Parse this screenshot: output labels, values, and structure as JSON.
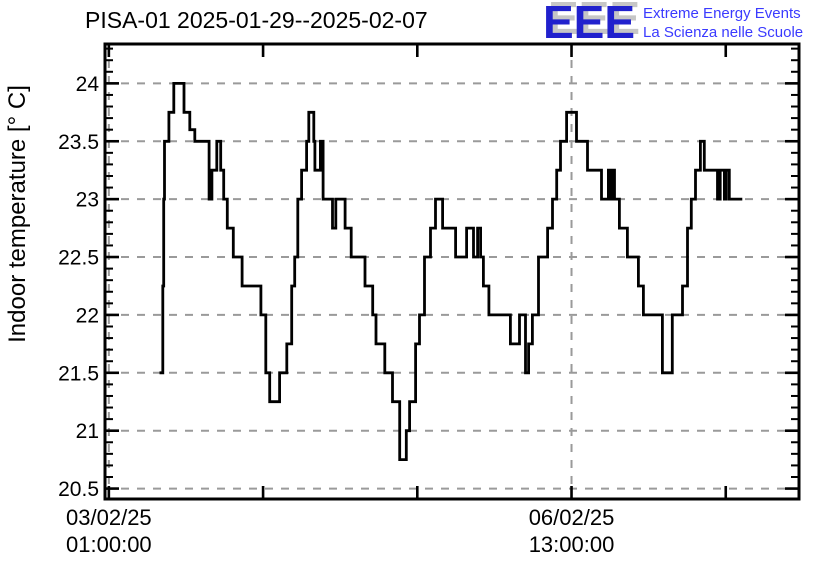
{
  "title": "PISA-01 2025-01-29--2025-02-07",
  "logo": {
    "acronym": "EEE",
    "line1": "Extreme Energy Events",
    "line2": "La Scienza nelle Scuole",
    "acronym_color": "#2121cd",
    "shadow_color": "#c6c6c6",
    "text_color": "#3a3aff"
  },
  "chart_data": {
    "type": "line",
    "line_style": "step-after",
    "title": "PISA-01 2025-01-29--2025-02-07",
    "ylabel": "Indoor temperature [° C]",
    "xlabel": "",
    "ylim": [
      20.41,
      24.34
    ],
    "xlim_hours": [
      -0.7,
      125.3
    ],
    "x_unit": "hours since 03/02/25 01:00:00",
    "grid": true,
    "grid_color": "#9a9a9a",
    "line_color": "#000000",
    "frame_color": "#000000",
    "y_major_ticks": [
      20.5,
      21,
      21.5,
      22,
      22.5,
      23,
      23.5,
      24
    ],
    "y_tick_labels": [
      "20.5",
      "21",
      "21.5",
      "22",
      "22.5",
      "23",
      "23.5",
      "24"
    ],
    "y_minor_step": 0.1,
    "y_minor_range": [
      20.5,
      24.3
    ],
    "x_major_ticks_hours": [
      0,
      28,
      56,
      84,
      112
    ],
    "x_labeled_ticks": [
      {
        "t": 0,
        "date": "03/02/25",
        "time": "01:00:00"
      },
      {
        "t": 84,
        "date": "06/02/25",
        "time": "13:00:00"
      }
    ],
    "steps": [
      [
        9.2,
        21.5
      ],
      [
        9.8,
        22.25
      ],
      [
        9.95,
        23.0
      ],
      [
        10.1,
        23.5
      ],
      [
        10.9,
        23.75
      ],
      [
        11.8,
        24.0
      ],
      [
        13.65,
        23.75
      ],
      [
        14.7,
        23.6
      ],
      [
        15.6,
        23.5
      ],
      [
        18.2,
        23.0
      ],
      [
        18.7,
        23.25
      ],
      [
        19.6,
        23.5
      ],
      [
        20.3,
        23.25
      ],
      [
        20.85,
        23.0
      ],
      [
        21.5,
        22.75
      ],
      [
        22.6,
        22.5
      ],
      [
        24.2,
        22.25
      ],
      [
        27.6,
        22.0
      ],
      [
        28.5,
        21.5
      ],
      [
        29.2,
        21.25
      ],
      [
        31.0,
        21.5
      ],
      [
        32.3,
        21.75
      ],
      [
        33.2,
        22.25
      ],
      [
        33.75,
        22.5
      ],
      [
        34.3,
        23.0
      ],
      [
        35.0,
        23.25
      ],
      [
        35.9,
        23.5
      ],
      [
        36.3,
        23.75
      ],
      [
        37.2,
        23.5
      ],
      [
        37.4,
        23.25
      ],
      [
        38.4,
        23.5
      ],
      [
        38.9,
        23.0
      ],
      [
        40.6,
        22.75
      ],
      [
        41.2,
        23.0
      ],
      [
        42.9,
        22.75
      ],
      [
        44.0,
        22.5
      ],
      [
        46.5,
        22.25
      ],
      [
        47.9,
        22.0
      ],
      [
        48.5,
        21.75
      ],
      [
        50.1,
        21.5
      ],
      [
        51.5,
        21.25
      ],
      [
        52.8,
        20.75
      ],
      [
        54.0,
        21.0
      ],
      [
        54.6,
        21.25
      ],
      [
        55.7,
        21.75
      ],
      [
        56.4,
        22.0
      ],
      [
        57.3,
        22.5
      ],
      [
        58.4,
        22.75
      ],
      [
        59.3,
        23.0
      ],
      [
        60.6,
        22.75
      ],
      [
        62.95,
        22.5
      ],
      [
        64.95,
        22.75
      ],
      [
        66.2,
        22.5
      ],
      [
        66.95,
        22.75
      ],
      [
        67.5,
        22.5
      ],
      [
        68.0,
        22.25
      ],
      [
        69.0,
        22.0
      ],
      [
        72.9,
        21.75
      ],
      [
        74.55,
        22.0
      ],
      [
        75.65,
        21.5
      ],
      [
        76.2,
        21.75
      ],
      [
        76.9,
        22.0
      ],
      [
        78.0,
        22.5
      ],
      [
        79.65,
        22.75
      ],
      [
        80.55,
        23.0
      ],
      [
        81.3,
        23.25
      ],
      [
        82.0,
        23.5
      ],
      [
        83.1,
        23.75
      ],
      [
        84.9,
        23.5
      ],
      [
        86.9,
        23.25
      ],
      [
        89.45,
        23.0
      ],
      [
        90.7,
        23.25
      ],
      [
        91.15,
        23.0
      ],
      [
        91.35,
        23.25
      ],
      [
        91.8,
        23.0
      ],
      [
        92.7,
        22.75
      ],
      [
        94.15,
        22.5
      ],
      [
        96.15,
        22.25
      ],
      [
        97.05,
        22.0
      ],
      [
        100.5,
        21.5
      ],
      [
        102.3,
        22.0
      ],
      [
        104.15,
        22.25
      ],
      [
        105.05,
        22.75
      ],
      [
        105.75,
        23.0
      ],
      [
        106.5,
        23.25
      ],
      [
        107.4,
        23.5
      ],
      [
        108.1,
        23.25
      ],
      [
        110.5,
        23.0
      ],
      [
        111.0,
        23.25
      ],
      [
        111.75,
        23.0
      ],
      [
        112.1,
        23.25
      ],
      [
        112.65,
        23.0
      ],
      [
        115.0,
        23.0
      ]
    ]
  }
}
